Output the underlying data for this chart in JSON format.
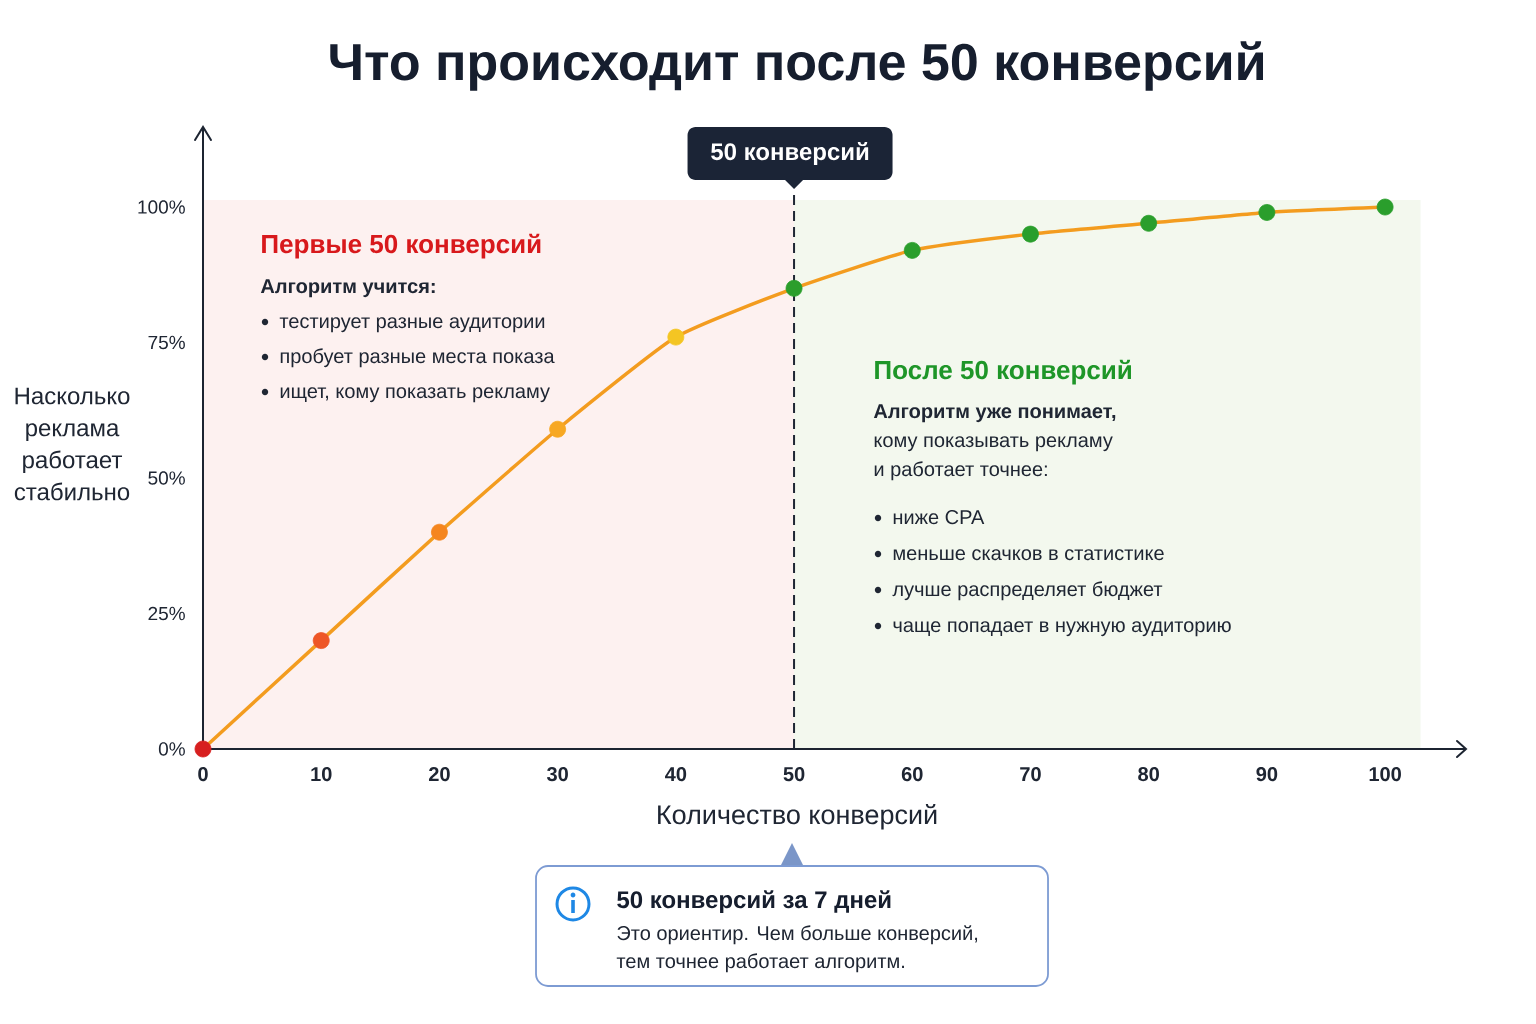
{
  "chart_data": {
    "type": "line",
    "title": "Что происходит после 50 конверсий",
    "xlabel": "Количество конверсий",
    "ylabel": "Насколько реклама работает стабильно",
    "x": [
      0,
      10,
      20,
      30,
      40,
      50,
      60,
      70,
      80,
      90,
      100
    ],
    "series": [
      {
        "values": [
          0,
          20,
          40,
          59,
          76,
          85,
          92,
          95,
          97,
          99,
          100
        ],
        "color": "#f39c1f",
        "colors": [
          "#d71f1f",
          "#ee5626",
          "#f5861f",
          "#f7a823",
          "#f4c523",
          "#2a9e2c",
          "#2a9e2c",
          "#2a9e2c",
          "#2a9e2c",
          "#2a9e2c",
          "#2a9e2c"
        ]
      }
    ],
    "marker": "circle",
    "xlim": [
      0,
      106
    ],
    "ylim": [
      0,
      112
    ],
    "xticks": [
      0,
      10,
      20,
      30,
      40,
      50,
      60,
      70,
      80,
      90,
      100
    ],
    "yticks": [
      {
        "value": 0,
        "label": "0%"
      },
      {
        "value": 25,
        "label": "25%"
      },
      {
        "value": 50,
        "label": "50%"
      },
      {
        "value": 75,
        "label": "75%"
      },
      {
        "value": 100,
        "label": "100%"
      }
    ],
    "ref_lines": [
      {
        "axis": "x",
        "value": 50,
        "label": "50 конверсий",
        "color": "#1f2633",
        "line_style": "dashed"
      }
    ],
    "bands": [
      {
        "axis": "x",
        "from": 0,
        "to": 50,
        "label": "Первые 50 конверсий",
        "color": "#fdf1f0"
      },
      {
        "axis": "x",
        "from": 50,
        "to": 103,
        "label": "После 50 конверсий",
        "color": "#f3f8ee"
      }
    ],
    "annotations": [
      "Алгоритм учится:",
      "тестирует разные аудитории",
      "пробует разные места показа",
      "ищет, кому показать рекламу",
      "**Алгоритм уже понимает,** кому показывать рекламу и работает точнее:",
      "ниже CPA",
      "меньше скачков в статистике",
      "лучше распределяет бюджет",
      "чаще попадает в нужную аудиторию",
      "50 конверсий за 7 дней",
      "Это ориентир. Чем больше конверсий, тем точнее работает алгоритм."
    ]
  }
}
